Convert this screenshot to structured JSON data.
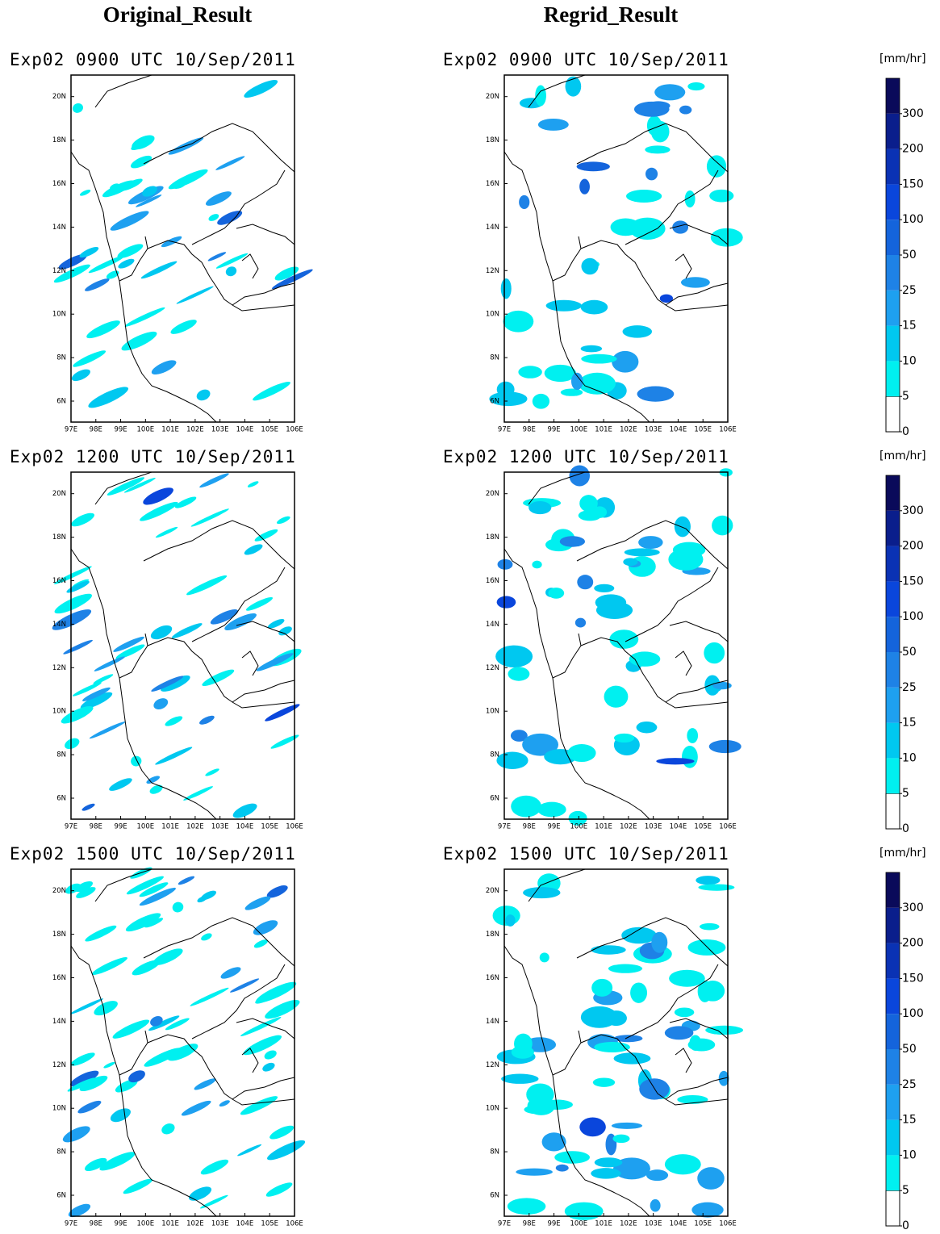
{
  "columns": [
    "Original_Result",
    "Regrid_Result"
  ],
  "rows": [
    {
      "left_title": "Exp02 0900 UTC 10/Sep/2011",
      "right_title": "Exp02 0900 UTC 10/Sep/2011"
    },
    {
      "left_title": "Exp02 1200 UTC 10/Sep/2011",
      "right_title": "Exp02 1200 UTC 10/Sep/2011"
    },
    {
      "left_title": "Exp02 1500 UTC 10/Sep/2011",
      "right_title": "Exp02 1500 UTC 10/Sep/2011"
    }
  ],
  "map": {
    "lat_ticks": [
      "6N",
      "8N",
      "10N",
      "12N",
      "14N",
      "16N",
      "18N",
      "20N"
    ],
    "lon_ticks": [
      "97E",
      "98E",
      "99E",
      "100E",
      "101E",
      "102E",
      "103E",
      "104E",
      "105E",
      "106E"
    ]
  },
  "colorbar": {
    "unit": "[mm/hr]",
    "levels": [
      0,
      5,
      10,
      15,
      25,
      50,
      100,
      150,
      200,
      300
    ],
    "colors": [
      "#ffffff",
      "#00f0f0",
      "#00c8f0",
      "#1ea0f0",
      "#1e82e6",
      "#1464dc",
      "#0a46dc",
      "#0a32b4",
      "#0a1e8c",
      "#0a0a5a"
    ]
  }
}
